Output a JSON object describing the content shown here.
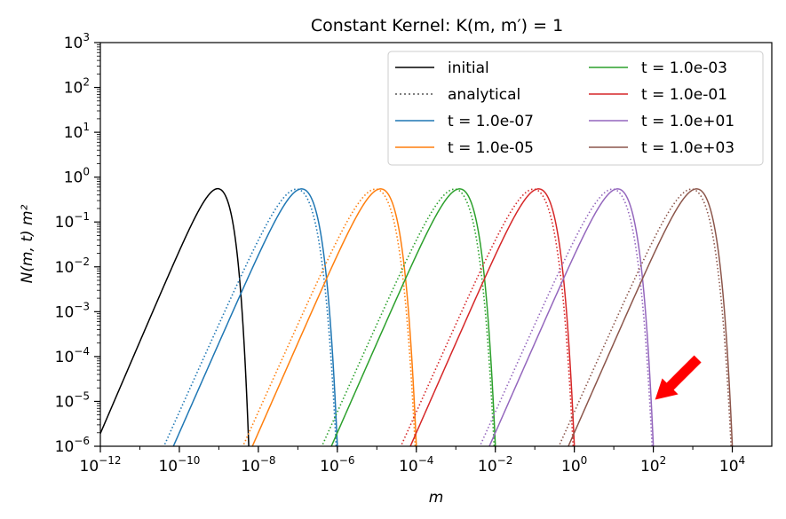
{
  "chart_data": {
    "type": "line",
    "title": "Constant Kernel: K(m, m′) = 1",
    "xlabel": "m",
    "ylabel": "N(m, t) m²",
    "x_scale": "log",
    "y_scale": "log",
    "xlim": [
      1e-12,
      100000.0
    ],
    "ylim": [
      1e-06,
      1000.0
    ],
    "x_ticks": [
      {
        "base": "10",
        "exp": "−12",
        "value": 1e-12
      },
      {
        "base": "10",
        "exp": "−10",
        "value": 1e-10
      },
      {
        "base": "10",
        "exp": "−8",
        "value": 1e-08
      },
      {
        "base": "10",
        "exp": "−6",
        "value": 1e-06
      },
      {
        "base": "10",
        "exp": "−4",
        "value": 0.0001
      },
      {
        "base": "10",
        "exp": "−2",
        "value": 0.01
      },
      {
        "base": "10",
        "exp": "0",
        "value": 1
      },
      {
        "base": "10",
        "exp": "2",
        "value": 100
      },
      {
        "base": "10",
        "exp": "4",
        "value": 10000
      }
    ],
    "y_ticks": [
      {
        "base": "10",
        "exp": "−6",
        "value": 1e-06
      },
      {
        "base": "10",
        "exp": "−5",
        "value": 1e-05
      },
      {
        "base": "10",
        "exp": "−4",
        "value": 0.0001
      },
      {
        "base": "10",
        "exp": "−3",
        "value": 0.001
      },
      {
        "base": "10",
        "exp": "−2",
        "value": 0.01
      },
      {
        "base": "10",
        "exp": "−1",
        "value": 0.1
      },
      {
        "base": "10",
        "exp": "0",
        "value": 1
      },
      {
        "base": "10",
        "exp": "1",
        "value": 10
      },
      {
        "base": "10",
        "exp": "2",
        "value": 100
      },
      {
        "base": "10",
        "exp": "3",
        "value": 1000
      }
    ],
    "legend": {
      "placement": "top-right",
      "columns": 2,
      "entries": [
        {
          "label": "initial",
          "color": "#000000",
          "style": "solid"
        },
        {
          "label": "analytical",
          "color": "#808080",
          "style": "dotted"
        },
        {
          "label": "t = 1.0e-07",
          "color": "#1f77b4",
          "style": "solid"
        },
        {
          "label": "t = 1.0e-05",
          "color": "#ff7f0e",
          "style": "solid"
        },
        {
          "label": "t = 1.0e-03",
          "color": "#2ca02c",
          "style": "solid"
        },
        {
          "label": "t = 1.0e-01",
          "color": "#d62728",
          "style": "solid"
        },
        {
          "label": "t = 1.0e+01",
          "color": "#9467bd",
          "style": "solid"
        },
        {
          "label": "t = 1.0e+03",
          "color": "#8c564b",
          "style": "solid"
        }
      ]
    },
    "series": [
      {
        "name": "initial",
        "color": "#000000",
        "peak_m": 1e-09,
        "peak_value": 0.55,
        "analytical": false,
        "x": [
          1e-12,
          1e-11,
          1e-10,
          1e-09,
          3e-09,
          5e-09,
          1e-08
        ],
        "y": [
          4e-06,
          0.0025,
          0.09,
          0.55,
          0.05,
          5e-05,
          1e-06
        ]
      },
      {
        "name": "t = 1.0e-07",
        "color": "#1f77b4",
        "peak_m": 1e-07,
        "peak_value": 0.52,
        "analytical": true,
        "x": [
          6e-10,
          1e-08,
          1e-07,
          1e-06,
          2e-06
        ],
        "y": [
          1e-06,
          0.003,
          0.52,
          0.0002,
          1e-06
        ]
      },
      {
        "name": "t = 1.0e-05",
        "color": "#ff7f0e",
        "peak_m": 1e-05,
        "peak_value": 0.52,
        "analytical": true,
        "x": [
          6e-08,
          1e-06,
          1e-05,
          0.0001,
          0.0002
        ],
        "y": [
          1e-06,
          0.003,
          0.52,
          0.0002,
          1e-06
        ]
      },
      {
        "name": "t = 1.0e-03",
        "color": "#2ca02c",
        "peak_m": 0.001,
        "peak_value": 0.52,
        "analytical": true,
        "x": [
          6e-06,
          0.0001,
          0.001,
          0.01,
          0.02
        ],
        "y": [
          1e-06,
          0.003,
          0.52,
          0.0002,
          1e-06
        ]
      },
      {
        "name": "t = 1.0e-01",
        "color": "#d62728",
        "peak_m": 0.1,
        "peak_value": 0.52,
        "analytical": true,
        "x": [
          0.0006,
          0.01,
          0.1,
          1,
          2
        ],
        "y": [
          1e-06,
          0.003,
          0.52,
          0.0002,
          1e-06
        ]
      },
      {
        "name": "t = 1.0e+01",
        "color": "#9467bd",
        "peak_m": 10,
        "peak_value": 0.52,
        "analytical": true,
        "x": [
          0.06,
          1,
          10,
          100,
          200
        ],
        "y": [
          1e-06,
          0.003,
          0.52,
          0.0002,
          1e-06
        ]
      },
      {
        "name": "t = 1.0e+03",
        "color": "#8c564b",
        "peak_m": 1000,
        "peak_value": 0.52,
        "analytical": true,
        "x": [
          6,
          100,
          1000,
          10000,
          20000
        ],
        "y": [
          1e-06,
          0.003,
          0.52,
          0.0002,
          1e-06
        ]
      }
    ],
    "annotation": {
      "type": "red-arrow",
      "points_to": {
        "x": 100,
        "y": 1e-05
      },
      "color": "#ff0000"
    }
  }
}
